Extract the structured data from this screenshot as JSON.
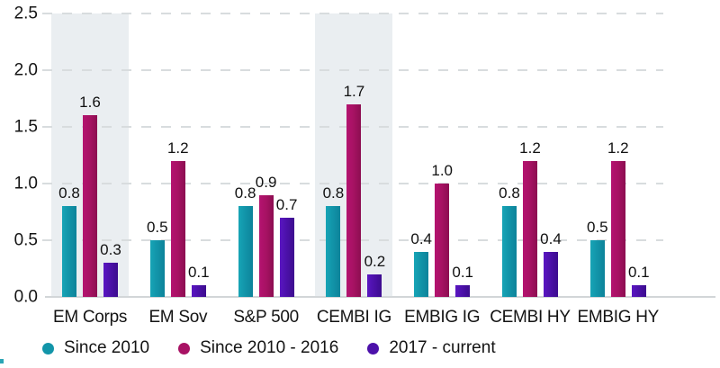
{
  "chart_data": {
    "type": "bar",
    "title": "",
    "xlabel": "",
    "ylabel": "",
    "categories": [
      "EM Corps",
      "EM Sov",
      "S&P 500",
      "CEMBI IG",
      "EMBIG IG",
      "CEMBI HY",
      "EMBIG HY"
    ],
    "series": [
      {
        "name": "Since 2010",
        "color": "#1295a9",
        "color_light": "#17a4b6",
        "color_dark": "#0d839a",
        "values": [
          0.8,
          0.5,
          0.8,
          0.8,
          0.4,
          0.8,
          0.5
        ]
      },
      {
        "name": "Since 2010 - 2016",
        "color": "#a81264",
        "color_light": "#b41370",
        "color_dark": "#8c0e51",
        "values": [
          1.6,
          1.2,
          0.9,
          1.7,
          1.0,
          1.2,
          1.2
        ]
      },
      {
        "name": "2017 - current",
        "color": "#4c11aa",
        "color_light": "#5a16c2",
        "color_dark": "#3c0c8e",
        "values": [
          0.3,
          0.1,
          0.7,
          0.2,
          0.1,
          0.4,
          0.1
        ]
      }
    ],
    "y_ticks": [
      0.0,
      0.5,
      1.0,
      1.5,
      2.0,
      2.5
    ],
    "y_tick_labels": [
      "0.0",
      "0.5",
      "1.0",
      "1.5",
      "2.0",
      "2.5"
    ],
    "ylim": [
      0,
      2.5
    ],
    "grid": "horizontal-dashed",
    "legend_position": "bottom",
    "bar_value_labels_shown": true,
    "value_label_format": "0.0",
    "highlighted_categories": [
      "EM Corps",
      "CEMBI IG"
    ]
  },
  "legend": {
    "items": [
      {
        "label": "Since 2010",
        "color": "#1295a9"
      },
      {
        "label": "Since 2010 - 2016",
        "color": "#a81264"
      },
      {
        "label": "2017 - current",
        "color": "#4c11aa"
      }
    ]
  },
  "colors": {
    "background": "#ffffff",
    "highlight_band": "#eaeef1",
    "gridline": "#d8dcde",
    "axis_line": "#d2d6d8",
    "text": "#141414",
    "corner_artifact": "#2aa5b5"
  }
}
